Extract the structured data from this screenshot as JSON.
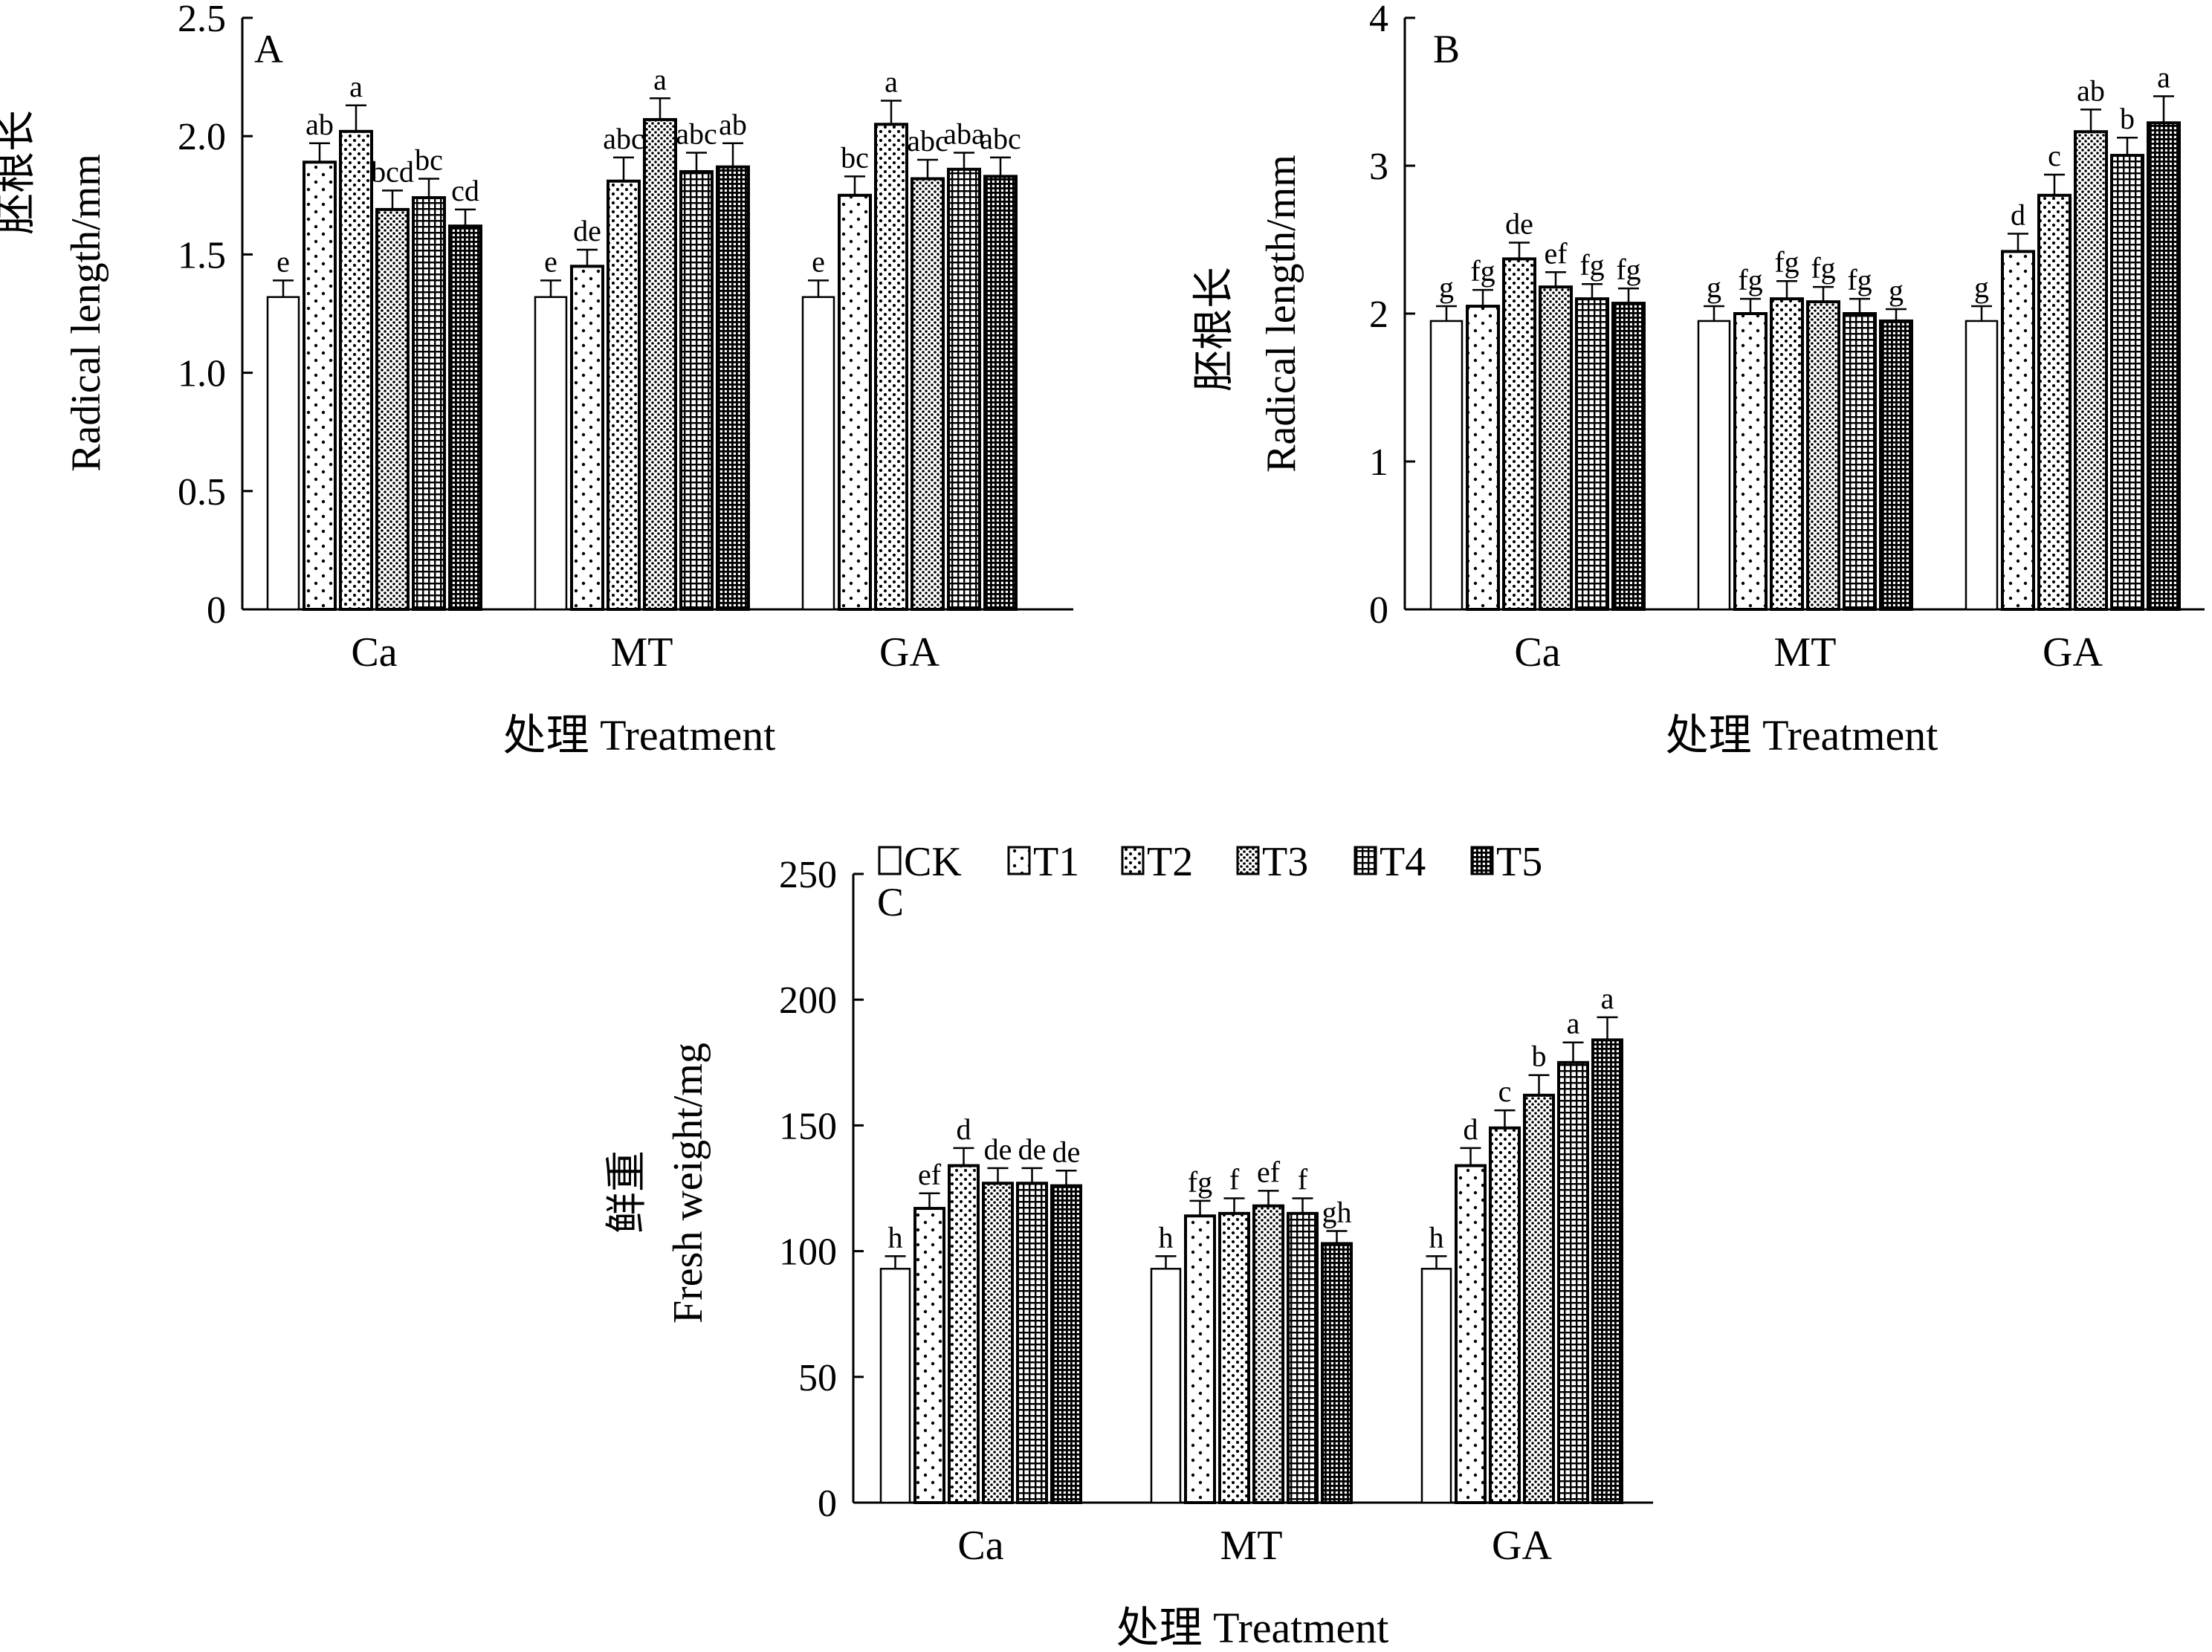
{
  "figure": {
    "background": "#ffffff",
    "ink": "#000000"
  },
  "legend": {
    "items": [
      {
        "label": "CK",
        "pattern": "blank"
      },
      {
        "label": "T1",
        "pattern": "sparse-dots"
      },
      {
        "label": "T2",
        "pattern": "medium-dots"
      },
      {
        "label": "T3",
        "pattern": "dense-dots"
      },
      {
        "label": "T4",
        "pattern": "grid"
      },
      {
        "label": "T5",
        "pattern": "dense-grid"
      }
    ]
  },
  "chart_data": [
    {
      "panel_label": "A",
      "type": "bar",
      "categories": [
        "Ca",
        "MT",
        "GA"
      ],
      "series_names": [
        "CK",
        "T1",
        "T2",
        "T3",
        "T4",
        "T5"
      ],
      "values": [
        [
          1.32,
          1.89,
          2.02,
          1.69,
          1.74,
          1.62
        ],
        [
          1.32,
          1.45,
          1.81,
          2.07,
          1.85,
          1.87
        ],
        [
          1.32,
          1.75,
          2.05,
          1.82,
          1.86,
          1.83
        ]
      ],
      "errors": [
        [
          0.07,
          0.08,
          0.11,
          0.08,
          0.08,
          0.07
        ],
        [
          0.07,
          0.07,
          0.1,
          0.09,
          0.08,
          0.1
        ],
        [
          0.07,
          0.08,
          0.1,
          0.08,
          0.07,
          0.08
        ]
      ],
      "letters": [
        [
          "e",
          "ab",
          "a",
          "bcd",
          "bc",
          "cd"
        ],
        [
          "e",
          "de",
          "abc",
          "a",
          "abc",
          "ab"
        ],
        [
          "e",
          "bc",
          "a",
          "abc",
          "aba",
          "abc"
        ]
      ],
      "ylabel_cn": "胚根长",
      "ylabel_en": "Radical length/mm",
      "xlabel": "处理 Treatment",
      "ylim": [
        0,
        2.5
      ],
      "yticks": [
        "0",
        "0.5",
        "1.0",
        "1.5",
        "2.0",
        "2.5"
      ]
    },
    {
      "panel_label": "B",
      "type": "bar",
      "categories": [
        "Ca",
        "MT",
        "GA"
      ],
      "series_names": [
        "CK",
        "T1",
        "T2",
        "T3",
        "T4",
        "T5"
      ],
      "values": [
        [
          1.95,
          2.05,
          2.37,
          2.18,
          2.1,
          2.07
        ],
        [
          1.95,
          2.0,
          2.1,
          2.08,
          2.0,
          1.95
        ],
        [
          1.95,
          2.42,
          2.8,
          3.23,
          3.07,
          3.29
        ]
      ],
      "errors": [
        [
          0.1,
          0.11,
          0.11,
          0.1,
          0.1,
          0.1
        ],
        [
          0.1,
          0.1,
          0.12,
          0.1,
          0.1,
          0.08
        ],
        [
          0.1,
          0.12,
          0.14,
          0.15,
          0.12,
          0.18
        ]
      ],
      "letters": [
        [
          "g",
          "fg",
          "de",
          "ef",
          "fg",
          "fg"
        ],
        [
          "g",
          "fg",
          "fg",
          "fg",
          "fg",
          "g"
        ],
        [
          "g",
          "d",
          "c",
          "ab",
          "b",
          "a"
        ]
      ],
      "ylabel_cn": "胚根长",
      "ylabel_en": "Radical length/mm",
      "xlabel": "处理 Treatment",
      "ylim": [
        0,
        4
      ],
      "yticks": [
        "0",
        "1",
        "2",
        "3",
        "4"
      ]
    },
    {
      "panel_label": "C",
      "type": "bar",
      "categories": [
        "Ca",
        "MT",
        "GA"
      ],
      "series_names": [
        "CK",
        "T1",
        "T2",
        "T3",
        "T4",
        "T5"
      ],
      "values": [
        [
          93,
          117,
          134,
          127,
          127,
          126
        ],
        [
          93,
          114,
          115,
          118,
          115,
          103
        ],
        [
          93,
          134,
          149,
          162,
          175,
          184
        ]
      ],
      "errors": [
        [
          5,
          6,
          7,
          6,
          6,
          6
        ],
        [
          5,
          6,
          6,
          6,
          6,
          5
        ],
        [
          5,
          7,
          7,
          8,
          8,
          9
        ]
      ],
      "letters": [
        [
          "h",
          "ef",
          "d",
          "de",
          "de",
          "de"
        ],
        [
          "h",
          "fg",
          "f",
          "ef",
          "f",
          "gh"
        ],
        [
          "h",
          "d",
          "c",
          "b",
          "a",
          "a"
        ]
      ],
      "ylabel_cn": "鲜重",
      "ylabel_en": "Fresh weight/mg",
      "xlabel": "处理 Treatment",
      "ylim": [
        0,
        250
      ],
      "yticks": [
        "0",
        "50",
        "100",
        "150",
        "200",
        "250"
      ]
    }
  ]
}
